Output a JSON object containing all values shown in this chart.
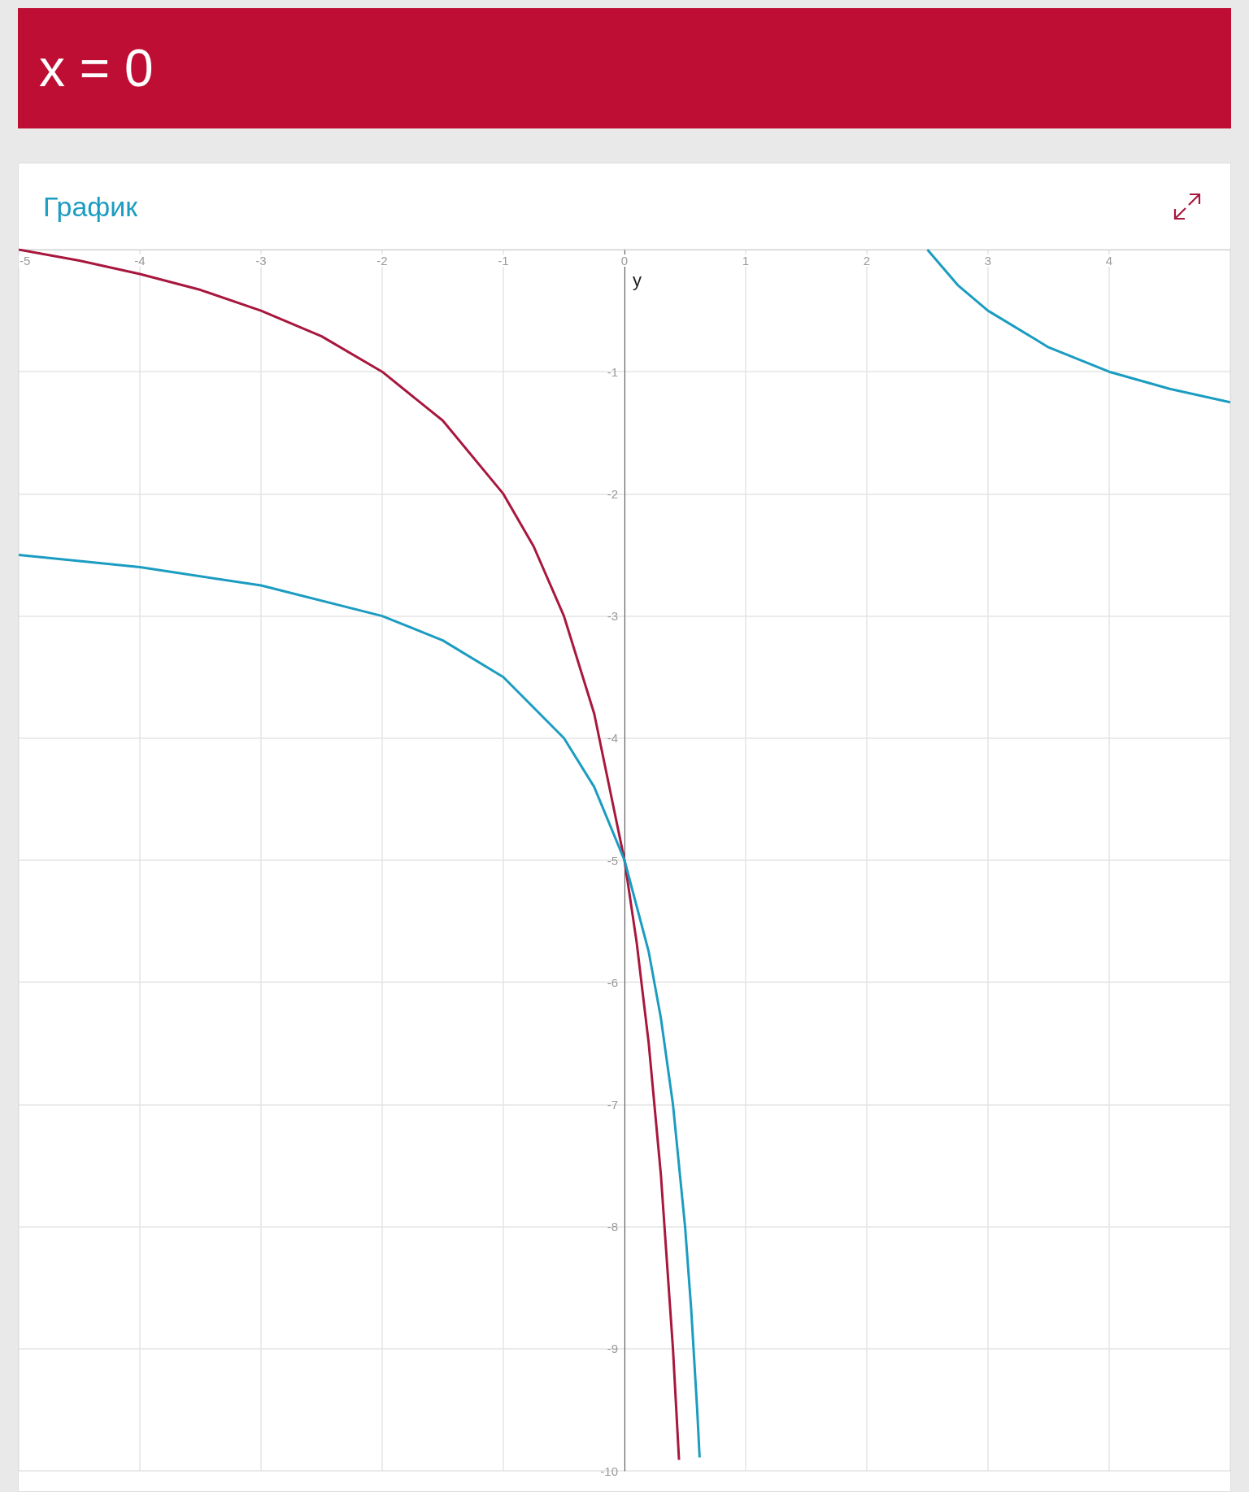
{
  "chart_data": {
    "type": "line",
    "title": "x = 0",
    "subtitle": "График",
    "ylabel": "y",
    "series": [
      {
        "color": "#a8173e",
        "x": [
          -5,
          -4.5,
          -4,
          -3.5,
          -3,
          -2.5,
          -2,
          -1.5,
          -1,
          -0.75,
          -0.5,
          -0.25,
          0,
          0.1,
          0.2,
          0.3,
          0.4,
          0.45
        ],
        "values": [
          0,
          -0.09,
          -0.2,
          -0.33,
          -0.5,
          -0.71,
          -1,
          -1.4,
          -2,
          -2.43,
          -3,
          -3.8,
          -5,
          -5.67,
          -6.5,
          -7.57,
          -9,
          -9.91
        ]
      },
      {
        "color": "#1b9cc1",
        "x": [
          -5,
          -4,
          -3,
          -2,
          -1.5,
          -1,
          -0.5,
          -0.25,
          0,
          0.2,
          0.3,
          0.4,
          0.5,
          0.55,
          0.6,
          0.62,
          1,
          2.5,
          2.75,
          3,
          3.5,
          4,
          4.5,
          5
        ],
        "values": [
          -2.5,
          -2.6,
          -2.75,
          -3,
          -3.2,
          -3.5,
          -4,
          -4.4,
          -5,
          -5.75,
          -6.29,
          -7,
          -8,
          -8.67,
          -9.5,
          -9.89,
          null,
          0,
          -0.29,
          -0.5,
          -0.8,
          -1,
          -1.14,
          -1.25
        ]
      }
    ],
    "xlim": [
      -5,
      5
    ],
    "ylim": [
      -10,
      0
    ],
    "xticks": [
      -5,
      -4,
      -3,
      -2,
      -1,
      0,
      1,
      2,
      3,
      4,
      {
        "value": 5,
        "label": null
      }
    ],
    "yticks": [
      -10,
      -9,
      -8,
      -7,
      -6,
      -5,
      -4,
      -3,
      -2,
      -1,
      {
        "value": 0,
        "label": null
      }
    ],
    "grid": true,
    "marker": "none",
    "line_style": "solid"
  }
}
